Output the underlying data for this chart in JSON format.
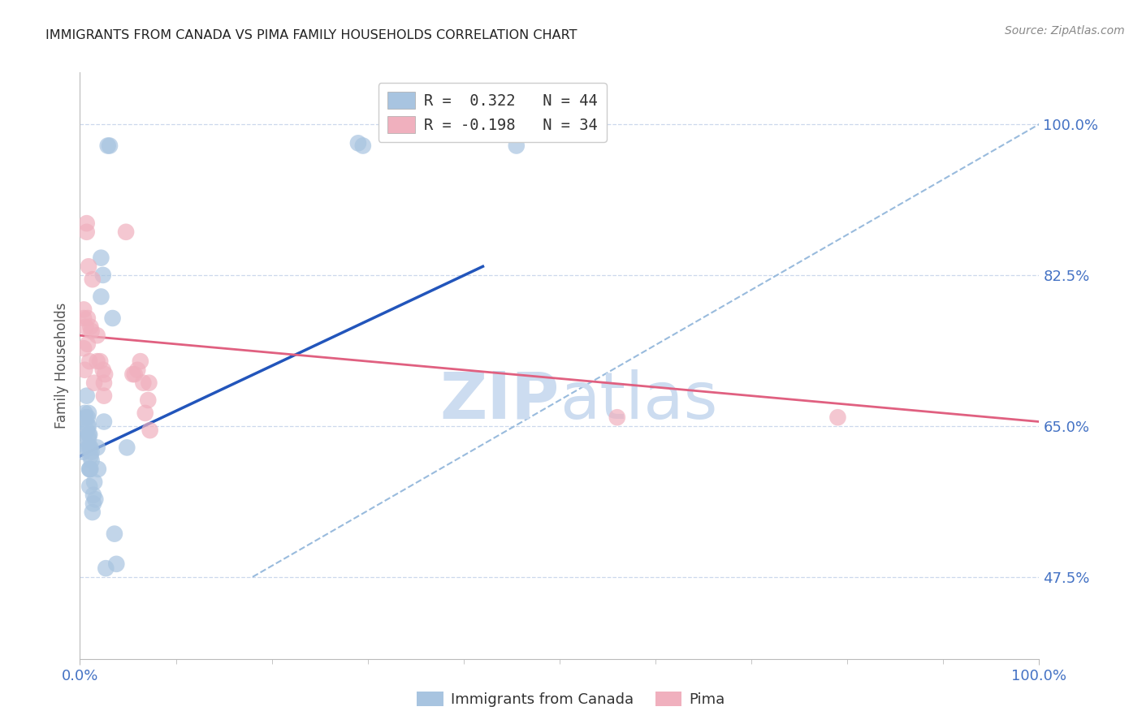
{
  "title": "IMMIGRANTS FROM CANADA VS PIMA FAMILY HOUSEHOLDS CORRELATION CHART",
  "source": "Source: ZipAtlas.com",
  "ylabel": "Family Households",
  "ytick_labels": [
    "100.0%",
    "82.5%",
    "65.0%",
    "47.5%"
  ],
  "ytick_values": [
    1.0,
    0.825,
    0.65,
    0.475
  ],
  "legend_blue_r": "R =  0.322",
  "legend_blue_n": "N = 44",
  "legend_pink_r": "R = -0.198",
  "legend_pink_n": "N = 34",
  "blue_color": "#a8c4e0",
  "pink_color": "#f0b0be",
  "blue_line_color": "#2255bb",
  "pink_line_color": "#e06080",
  "dashed_line_color": "#99bbdd",
  "axis_label_color": "#4472c4",
  "watermark_color": "#ccdcf0",
  "blue_scatter_x": [
    0.003,
    0.004,
    0.005,
    0.006,
    0.007,
    0.007,
    0.008,
    0.008,
    0.008,
    0.009,
    0.009,
    0.009,
    0.009,
    0.01,
    0.01,
    0.01,
    0.01,
    0.01,
    0.011,
    0.011,
    0.011,
    0.012,
    0.012,
    0.013,
    0.014,
    0.014,
    0.015,
    0.016,
    0.018,
    0.019,
    0.022,
    0.022,
    0.024,
    0.025,
    0.027,
    0.029,
    0.031,
    0.034,
    0.036,
    0.038,
    0.049,
    0.29,
    0.295,
    0.455
  ],
  "blue_scatter_y": [
    0.62,
    0.635,
    0.665,
    0.66,
    0.645,
    0.685,
    0.65,
    0.66,
    0.625,
    0.635,
    0.64,
    0.65,
    0.665,
    0.58,
    0.6,
    0.6,
    0.625,
    0.64,
    0.6,
    0.615,
    0.625,
    0.61,
    0.62,
    0.55,
    0.56,
    0.57,
    0.585,
    0.565,
    0.625,
    0.6,
    0.8,
    0.845,
    0.825,
    0.655,
    0.485,
    0.975,
    0.975,
    0.775,
    0.525,
    0.49,
    0.625,
    0.978,
    0.975,
    0.975
  ],
  "pink_scatter_x": [
    0.004,
    0.004,
    0.004,
    0.005,
    0.006,
    0.007,
    0.007,
    0.008,
    0.008,
    0.009,
    0.01,
    0.011,
    0.012,
    0.013,
    0.015,
    0.018,
    0.018,
    0.021,
    0.024,
    0.025,
    0.025,
    0.026,
    0.048,
    0.055,
    0.057,
    0.06,
    0.063,
    0.066,
    0.068,
    0.071,
    0.072,
    0.073,
    0.56,
    0.79
  ],
  "pink_scatter_y": [
    0.74,
    0.775,
    0.785,
    0.715,
    0.765,
    0.875,
    0.885,
    0.745,
    0.775,
    0.835,
    0.725,
    0.765,
    0.76,
    0.82,
    0.7,
    0.755,
    0.725,
    0.725,
    0.715,
    0.685,
    0.7,
    0.71,
    0.875,
    0.71,
    0.71,
    0.715,
    0.725,
    0.7,
    0.665,
    0.68,
    0.7,
    0.645,
    0.66,
    0.66
  ],
  "blue_line_x0": 0.0,
  "blue_line_x1": 0.42,
  "blue_line_y0": 0.615,
  "blue_line_y1": 0.835,
  "pink_line_x0": 0.0,
  "pink_line_x1": 1.0,
  "pink_line_y0": 0.755,
  "pink_line_y1": 0.655,
  "dashed_line_x0": 0.18,
  "dashed_line_y0": 0.475,
  "dashed_line_x1": 1.0,
  "dashed_line_y1": 1.0,
  "xlim": [
    0.0,
    1.0
  ],
  "ylim": [
    0.38,
    1.06
  ]
}
